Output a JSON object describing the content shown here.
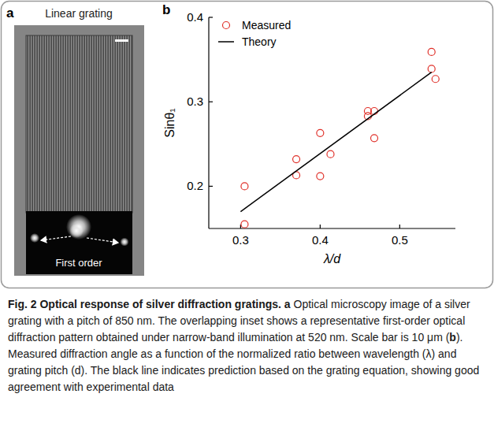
{
  "panel_a": {
    "label": "a",
    "title": "Linear grating",
    "inset_label": "First order"
  },
  "panel_b": {
    "label": "b"
  },
  "chart_data": {
    "type": "scatter",
    "xlabel": "λ/d",
    "ylabel": "Sinθ₁",
    "xlim": [
      0.26,
      0.57
    ],
    "xticks": [
      0.3,
      0.4,
      0.5
    ],
    "ylim": [
      0.15,
      0.4
    ],
    "yticks": [
      0.2,
      0.3,
      0.4
    ],
    "legend": "upper left",
    "grid": false,
    "series": [
      {
        "name": "Measured",
        "type": "scatter",
        "color": "#e0312a",
        "marker": "circle",
        "x": [
          0.305,
          0.305,
          0.37,
          0.37,
          0.4,
          0.4,
          0.413,
          0.46,
          0.46,
          0.468,
          0.468,
          0.54,
          0.54,
          0.545
        ],
        "values": [
          0.2,
          0.155,
          0.232,
          0.213,
          0.263,
          0.212,
          0.238,
          0.289,
          0.283,
          0.289,
          0.257,
          0.359,
          0.339,
          0.327
        ]
      },
      {
        "name": "Theory",
        "type": "line",
        "color": "#000000",
        "line_style": "solid",
        "x": [
          0.3,
          0.54
        ],
        "values": [
          0.17,
          0.335
        ]
      }
    ]
  },
  "caption": {
    "title": "Fig. 2 Optical response of silver diffraction gratings.",
    "parts": [
      {
        "label": "a",
        "text": "Optical microscopy image of a silver grating with a pitch of 850 nm. The overlapping inset shows a representative first-order optical diffraction pattern obtained under narrow-band illumination at 520 nm. Scale bar is 10 μm ("
      },
      {
        "label": "b",
        "text": "). Measured diffraction angle as a function of the normalized ratio between wavelength (λ) and grating pitch (d). The black line indicates prediction based on the grating equation, showing good agreement with experimental data"
      }
    ]
  }
}
